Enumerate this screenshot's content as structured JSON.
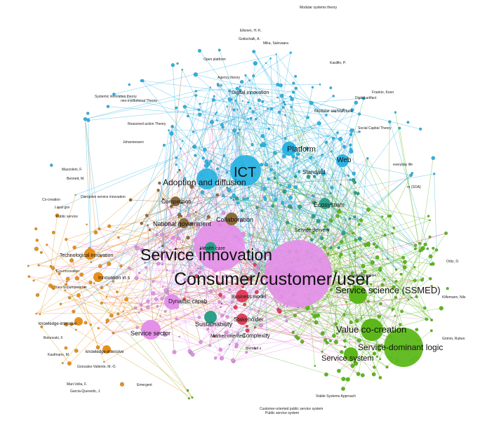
{
  "colors": {
    "blue": "#2bb3e3",
    "green": "#5cb81a",
    "orange": "#e8901a",
    "pink": "#e48fe8",
    "teal": "#2ca089",
    "red": "#e0405a",
    "brown": "#8a6a3a",
    "gray": "#777777"
  },
  "clusters": [
    {
      "name": "blue-cluster",
      "color": "blue"
    },
    {
      "name": "green-cluster",
      "color": "green"
    },
    {
      "name": "orange-cluster",
      "color": "orange"
    },
    {
      "name": "pink-cluster",
      "color": "pink"
    }
  ],
  "labels": {
    "consumer": "Consumer/customer/user",
    "service_innovation": "Service innovation",
    "ict": "ICT",
    "adoption": "Adoption and diffusion",
    "platform": "Platform",
    "web": "Web",
    "ecosystem": "Ecosystem",
    "standard": "Standard",
    "competition": "Competition",
    "national_government": "National government",
    "collaboration": "Collaboration",
    "health_care": "Health care",
    "service_delivery": "Service delivery",
    "service_science": "Service science (SSMED)",
    "value_cocreation": "Value co-creation",
    "sdl": "Service-dominant logic",
    "service_system": "Service system",
    "service_sector": "Service sector",
    "sustainability": "Sustainability",
    "stakeholder": "Stakeholder",
    "complexity": "Complexity",
    "market_oriented": "Market-oriented",
    "dynamic": "Dynamic capab",
    "business_model": "Business model",
    "tech_innovation": "Technological innovation",
    "innovation_is": "Innovation in s",
    "knowledge_intensive": "knowledge-intensive",
    "knowledge_intensive2": "knowledge-intensive",
    "digital_innovation": "Digital innovation",
    "modular_architecture": "Modular architecture",
    "agency_theory": "Agency theory",
    "open_platform": "Open platform",
    "modular_systems_theory": "Modular systems theory",
    "systemic_innovation_theory": "Systemic innovation theory",
    "neo_institutional": "neo-institutional Theory",
    "reasoned_action": "Reasoned action Theory",
    "social_capital": "Social Capital Theory",
    "digital_artifact": "Digital artifact",
    "everyday_life": "everyday life",
    "soa": "re (SOA)",
    "co_creation": "Co-creation",
    "local_gov": "Local gov",
    "public_service": "Public service",
    "disruptive": "Disruptive service innovation",
    "eco_innovation": "Eco-innovation",
    "neo_schumpeterian": "neo-Schumpeterian",
    "emergent": "Emergent",
    "viable": "Viable Systems Approach",
    "customer_oriented": "Customer-oriented public service system",
    "public_service_sys": "Public service system",
    "value_proposition": "Value proposition",
    "blended": "Blended s",
    "author_a": "Ellonen, H.-K.",
    "author_b": "Gottschalk, A.",
    "author_c": "Mika, Salovaara",
    "author_d": "Mazzoleni, F.",
    "author_e": "Bennett, M.",
    "author_f": "Johannessen",
    "author_g": "Frankin, Koen",
    "author_h": "Kasilfin, P.",
    "author_i": "Gonzalez-Valiente, M.-O.",
    "author_j": "Mari-Vella, F.",
    "author_k": "Garcia-Quevedo, J.",
    "author_l": "Bolonoski, F.",
    "author_m": "Grimm, Ruben",
    "author_n": "Kilfemann, Nils",
    "author_o": "Ortiz, D.",
    "author_p": "Kaufmann, M."
  }
}
